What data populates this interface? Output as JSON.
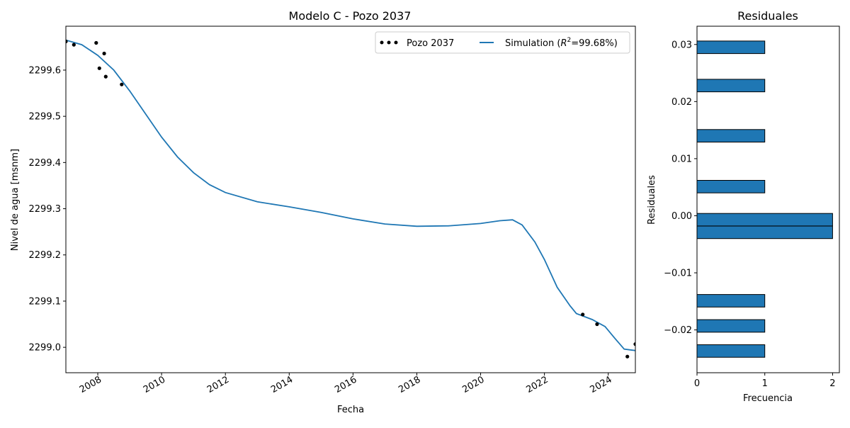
{
  "chart_data": [
    {
      "type": "line",
      "title": "Modelo C - Pozo 2037",
      "xlabel": "Fecha",
      "ylabel": "Nivel de agua [msnm]",
      "xlim": [
        2007.0,
        2024.85
      ],
      "ylim": [
        2298.945,
        2299.695
      ],
      "xticks": [
        2008,
        2010,
        2012,
        2014,
        2016,
        2018,
        2020,
        2022,
        2024
      ],
      "xtick_labels": [
        "2008",
        "2010",
        "2012",
        "2014",
        "2016",
        "2018",
        "2020",
        "2022",
        "2024"
      ],
      "yticks": [
        2299.0,
        2299.1,
        2299.2,
        2299.3,
        2299.4,
        2299.5,
        2299.6
      ],
      "ytick_labels": [
        "2299.0",
        "2299.1",
        "2299.2",
        "2299.3",
        "2299.4",
        "2299.5",
        "2299.6"
      ],
      "grid": false,
      "legend": {
        "placement": "top-right",
        "columns": 2
      },
      "series": [
        {
          "name": "Pozo 2037",
          "style": "scatter",
          "color": "#000000",
          "points": [
            [
              2007.0,
              2299.662
            ],
            [
              2007.25,
              2299.655
            ],
            [
              2007.95,
              2299.659
            ],
            [
              2008.05,
              2299.604
            ],
            [
              2008.2,
              2299.636
            ],
            [
              2008.25,
              2299.586
            ],
            [
              2008.75,
              2299.569
            ],
            [
              2023.2,
              2299.071
            ],
            [
              2023.65,
              2299.05
            ],
            [
              2024.6,
              2298.98
            ],
            [
              2024.85,
              2299.007
            ]
          ]
        },
        {
          "name": "Simulation ($R^2$=99.68%)",
          "legend_label_prefix": "Simulation (",
          "legend_label_r": "R",
          "legend_label_sup": "2",
          "legend_label_suffix": "=99.68%)",
          "style": "line",
          "color": "#1f77b4",
          "points": [
            [
              2007.0,
              2299.665
            ],
            [
              2007.5,
              2299.655
            ],
            [
              2008.0,
              2299.632
            ],
            [
              2008.5,
              2299.6
            ],
            [
              2009.0,
              2299.555
            ],
            [
              2009.5,
              2299.505
            ],
            [
              2010.0,
              2299.455
            ],
            [
              2010.5,
              2299.412
            ],
            [
              2011.0,
              2299.378
            ],
            [
              2011.5,
              2299.352
            ],
            [
              2012.0,
              2299.335
            ],
            [
              2013.0,
              2299.315
            ],
            [
              2014.0,
              2299.304
            ],
            [
              2015.0,
              2299.292
            ],
            [
              2016.0,
              2299.278
            ],
            [
              2017.0,
              2299.267
            ],
            [
              2018.0,
              2299.262
            ],
            [
              2019.0,
              2299.263
            ],
            [
              2020.0,
              2299.268
            ],
            [
              2020.6,
              2299.274
            ],
            [
              2021.0,
              2299.276
            ],
            [
              2021.3,
              2299.265
            ],
            [
              2021.7,
              2299.228
            ],
            [
              2022.0,
              2299.19
            ],
            [
              2022.4,
              2299.13
            ],
            [
              2022.8,
              2299.09
            ],
            [
              2023.0,
              2299.073
            ],
            [
              2023.5,
              2299.06
            ],
            [
              2023.9,
              2299.045
            ],
            [
              2024.2,
              2299.02
            ],
            [
              2024.5,
              2298.996
            ],
            [
              2024.85,
              2298.993
            ]
          ]
        }
      ]
    },
    {
      "type": "bar",
      "orientation": "horizontal",
      "title": "Residuales",
      "xlabel": "Frecuencia",
      "ylabel": "Residuales",
      "xlim": [
        0,
        2.1
      ],
      "ylim": [
        -0.0275,
        0.0332
      ],
      "xticks": [
        0,
        1,
        2
      ],
      "xtick_labels": [
        "0",
        "1",
        "2"
      ],
      "yticks": [
        -0.02,
        -0.01,
        0.0,
        0.01,
        0.02,
        0.03
      ],
      "ytick_labels": [
        "−0.02",
        "−0.01",
        "0.00",
        "0.01",
        "0.02",
        "0.03"
      ],
      "grid": false,
      "color": "#1f77b4",
      "edgecolor": "#000000",
      "bin_width": 0.0022,
      "bins": [
        {
          "center": 0.0295,
          "count": 1
        },
        {
          "center": 0.0228,
          "count": 1
        },
        {
          "center": 0.014,
          "count": 1
        },
        {
          "center": 0.0051,
          "count": 1
        },
        {
          "center": -0.0007,
          "count": 2
        },
        {
          "center": -0.0029,
          "count": 2
        },
        {
          "center": -0.0149,
          "count": 1
        },
        {
          "center": -0.0193,
          "count": 1
        },
        {
          "center": -0.0237,
          "count": 1
        }
      ]
    }
  ]
}
